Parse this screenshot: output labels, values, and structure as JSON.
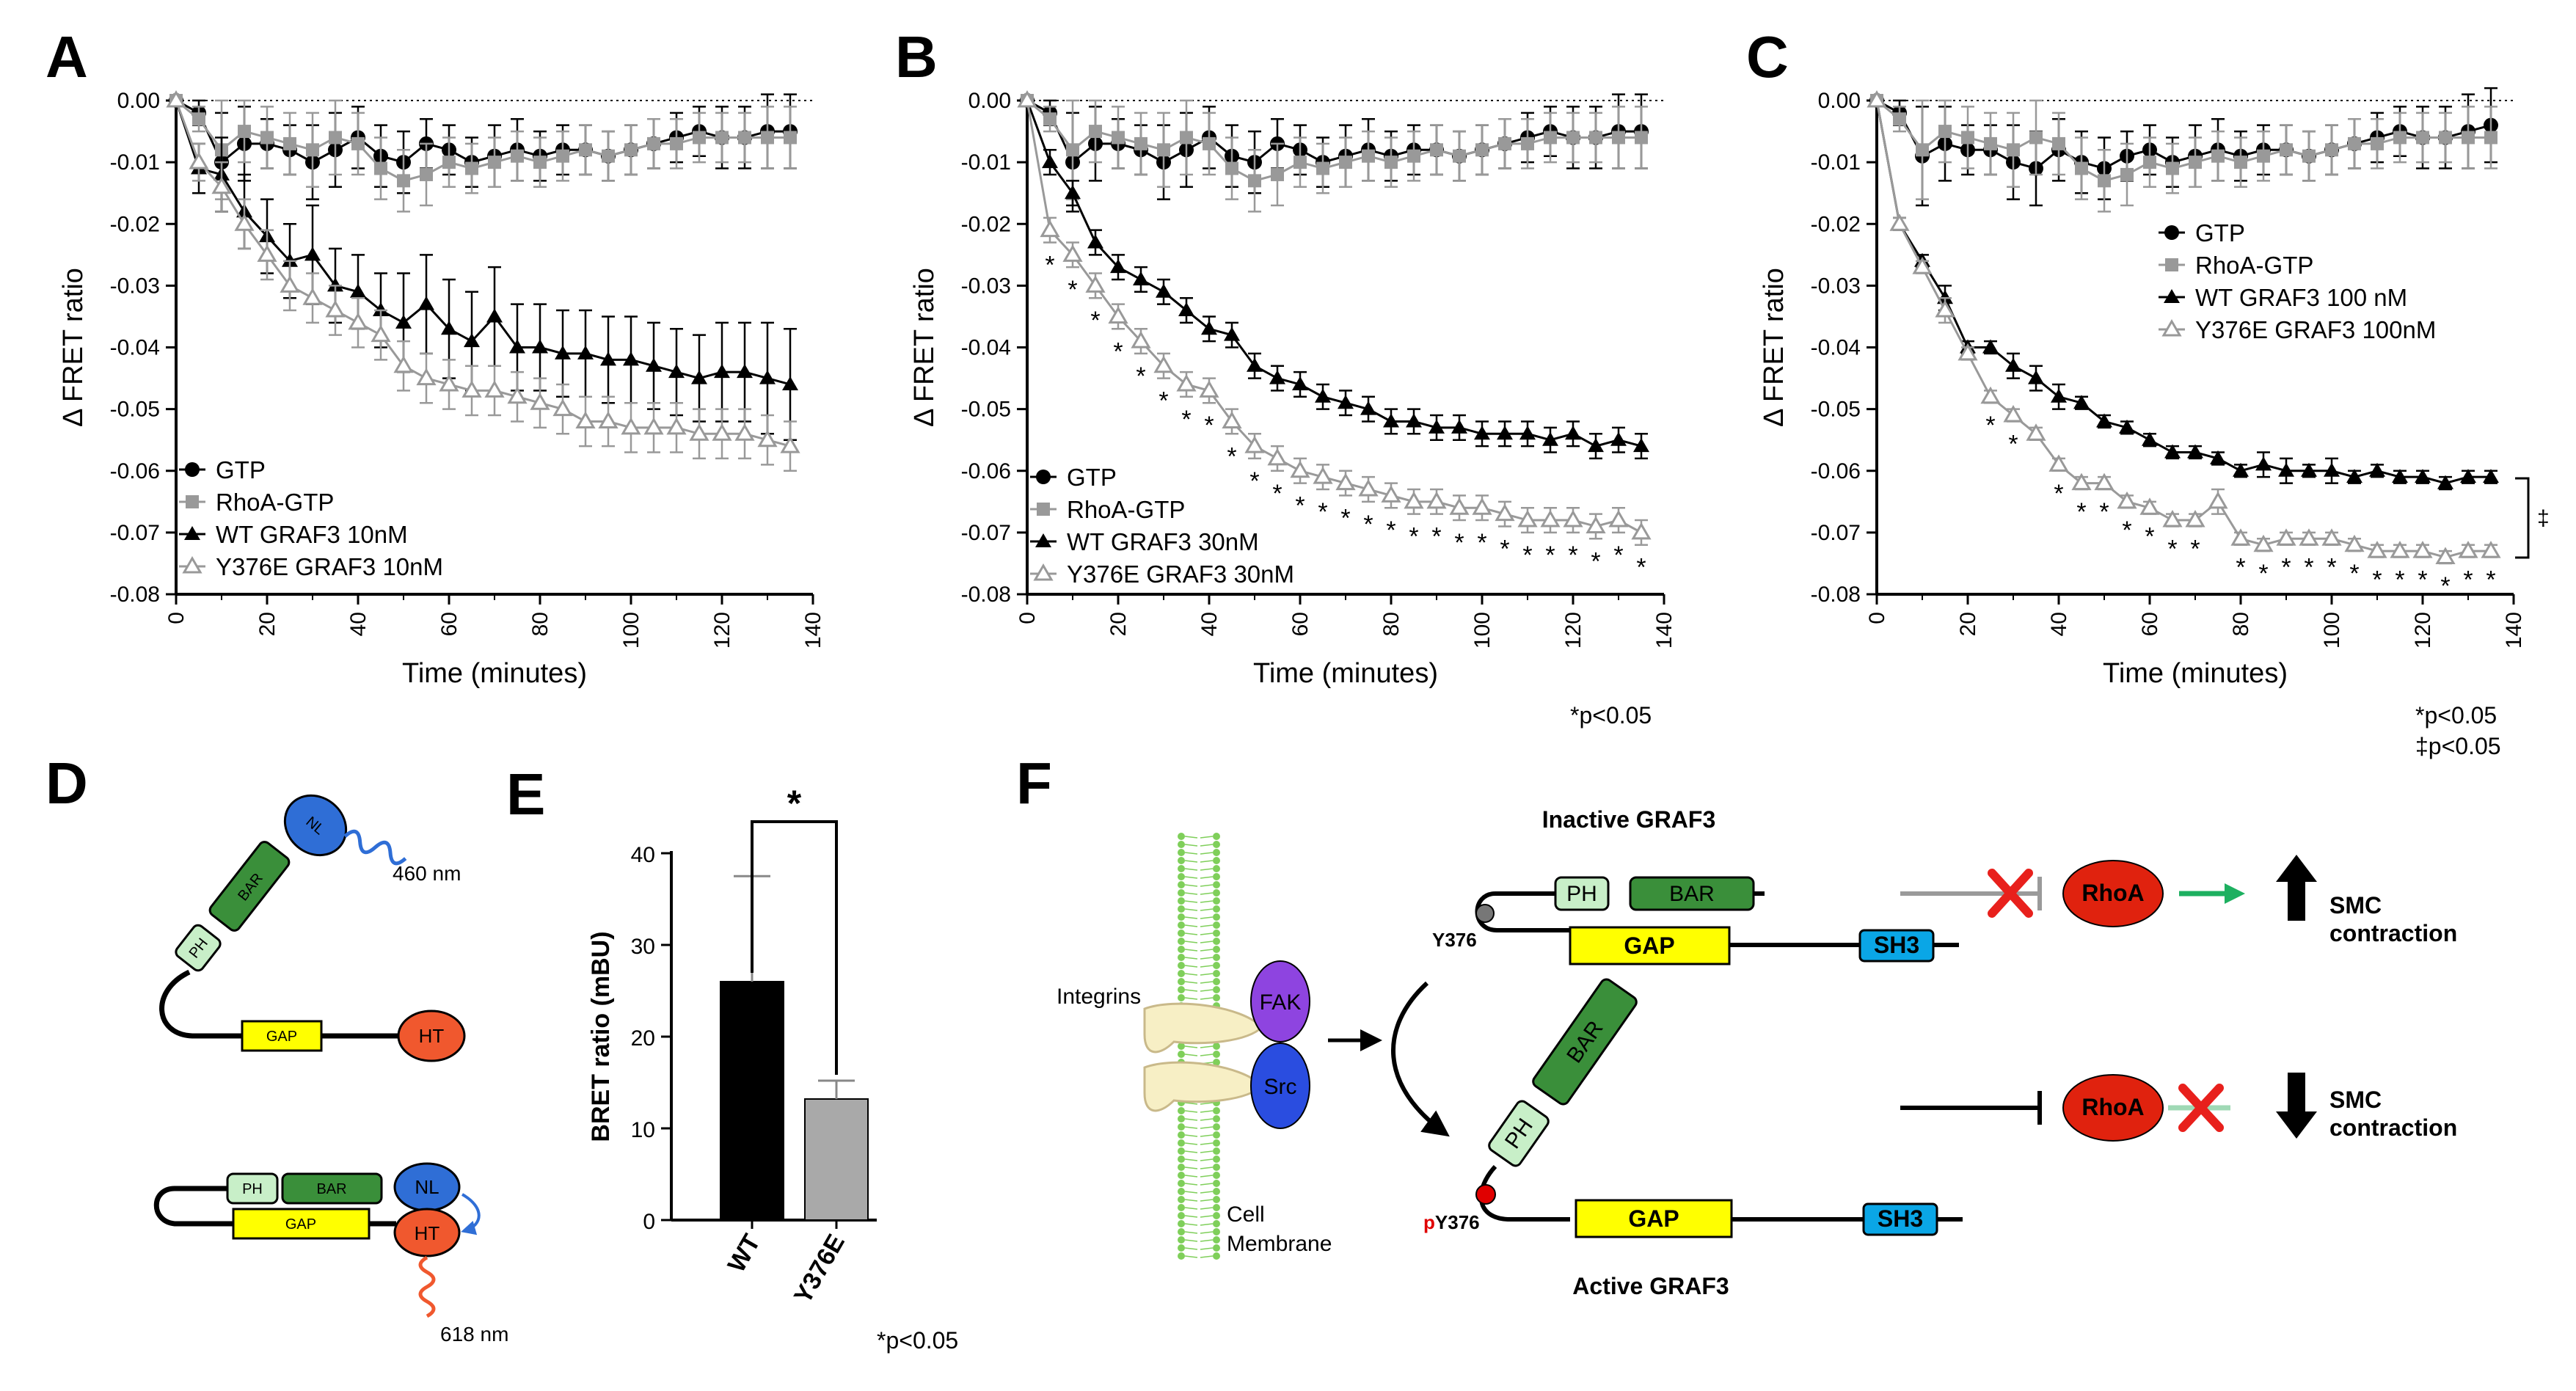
{
  "panels": {
    "A": "A",
    "B": "B",
    "C": "C",
    "D": "D",
    "E": "E",
    "F": "F"
  },
  "chart_data": [
    {
      "panel": "A",
      "type": "line",
      "xlabel": "Time (minutes)",
      "ylabel": "Δ FRET ratio",
      "xlim": [
        0,
        140
      ],
      "ylim": [
        -0.08,
        0.0
      ],
      "xticks": [
        "0",
        "20",
        "40",
        "60",
        "80",
        "100",
        "120",
        "140"
      ],
      "yticks": [
        "0.00",
        "-0.01",
        "-0.02",
        "-0.03",
        "-0.04",
        "-0.05",
        "-0.06",
        "-0.07",
        "-0.08"
      ],
      "x": [
        0,
        5,
        10,
        15,
        20,
        25,
        30,
        35,
        40,
        45,
        50,
        55,
        60,
        65,
        70,
        75,
        80,
        85,
        90,
        95,
        100,
        105,
        110,
        115,
        120,
        125,
        130,
        135
      ],
      "series": [
        {
          "name": "GTP",
          "marker": "circle",
          "color": "#000000",
          "values": [
            0,
            -0.002,
            -0.01,
            -0.007,
            -0.007,
            -0.008,
            -0.01,
            -0.008,
            -0.006,
            -0.009,
            -0.01,
            -0.007,
            -0.008,
            -0.01,
            -0.009,
            -0.008,
            -0.009,
            -0.008,
            -0.008,
            -0.009,
            -0.008,
            -0.007,
            -0.006,
            -0.005,
            -0.006,
            -0.006,
            -0.005,
            -0.005
          ],
          "err": [
            0,
            0.002,
            0.008,
            0.006,
            0.004,
            0.004,
            0.006,
            0.006,
            0.005,
            0.005,
            0.005,
            0.004,
            0.004,
            0.004,
            0.005,
            0.005,
            0.004,
            0.004,
            0.004,
            0.004,
            0.004,
            0.004,
            0.004,
            0.004,
            0.005,
            0.005,
            0.006,
            0.006
          ]
        },
        {
          "name": "RhoA-GTP",
          "marker": "square",
          "color": "#999999",
          "values": [
            0,
            -0.003,
            -0.008,
            -0.005,
            -0.006,
            -0.007,
            -0.008,
            -0.006,
            -0.007,
            -0.011,
            -0.013,
            -0.012,
            -0.01,
            -0.011,
            -0.01,
            -0.009,
            -0.01,
            -0.009,
            -0.008,
            -0.009,
            -0.008,
            -0.007,
            -0.007,
            -0.006,
            -0.006,
            -0.006,
            -0.006,
            -0.006
          ],
          "err": [
            0,
            0.002,
            0.008,
            0.005,
            0.005,
            0.005,
            0.006,
            0.006,
            0.005,
            0.005,
            0.005,
            0.005,
            0.004,
            0.004,
            0.004,
            0.004,
            0.004,
            0.004,
            0.004,
            0.004,
            0.004,
            0.004,
            0.004,
            0.004,
            0.004,
            0.004,
            0.005,
            0.005
          ]
        },
        {
          "name": "WT GRAF3 10nM",
          "marker": "triangle",
          "color": "#000000",
          "values": [
            0,
            -0.011,
            -0.012,
            -0.018,
            -0.022,
            -0.026,
            -0.025,
            -0.03,
            -0.031,
            -0.034,
            -0.036,
            -0.033,
            -0.037,
            -0.039,
            -0.035,
            -0.04,
            -0.04,
            -0.041,
            -0.041,
            -0.042,
            -0.042,
            -0.043,
            -0.044,
            -0.045,
            -0.044,
            -0.044,
            -0.045,
            -0.046
          ],
          "err": [
            0,
            0.004,
            0.006,
            0.006,
            0.006,
            0.006,
            0.008,
            0.006,
            0.006,
            0.006,
            0.008,
            0.008,
            0.008,
            0.008,
            0.008,
            0.007,
            0.007,
            0.007,
            0.007,
            0.007,
            0.007,
            0.007,
            0.007,
            0.007,
            0.008,
            0.008,
            0.009,
            0.009
          ]
        },
        {
          "name": "Y376E GRAF3 10nM",
          "marker": "triangle-open",
          "color": "#999999",
          "values": [
            0,
            -0.01,
            -0.014,
            -0.02,
            -0.025,
            -0.03,
            -0.032,
            -0.034,
            -0.036,
            -0.038,
            -0.043,
            -0.045,
            -0.046,
            -0.047,
            -0.047,
            -0.048,
            -0.049,
            -0.05,
            -0.052,
            -0.052,
            -0.053,
            -0.053,
            -0.053,
            -0.054,
            -0.054,
            -0.054,
            -0.055,
            -0.056
          ],
          "err": [
            0,
            0.003,
            0.004,
            0.004,
            0.004,
            0.004,
            0.004,
            0.004,
            0.004,
            0.004,
            0.004,
            0.004,
            0.004,
            0.004,
            0.004,
            0.004,
            0.004,
            0.004,
            0.004,
            0.004,
            0.004,
            0.004,
            0.004,
            0.004,
            0.004,
            0.004,
            0.004,
            0.004
          ]
        }
      ],
      "stars": [],
      "note": ""
    },
    {
      "panel": "B",
      "type": "line",
      "xlabel": "Time (minutes)",
      "ylabel": "Δ FRET ratio",
      "xlim": [
        0,
        140
      ],
      "ylim": [
        -0.08,
        0.0
      ],
      "xticks": [
        "0",
        "20",
        "40",
        "60",
        "80",
        "100",
        "120",
        "140"
      ],
      "yticks": [
        "0.00",
        "-0.01",
        "-0.02",
        "-0.03",
        "-0.04",
        "-0.05",
        "-0.06",
        "-0.07",
        "-0.08"
      ],
      "x": [
        0,
        5,
        10,
        15,
        20,
        25,
        30,
        35,
        40,
        45,
        50,
        55,
        60,
        65,
        70,
        75,
        80,
        85,
        90,
        95,
        100,
        105,
        110,
        115,
        120,
        125,
        130,
        135
      ],
      "series": [
        {
          "name": "GTP",
          "marker": "circle",
          "color": "#000000",
          "values": [
            0,
            -0.002,
            -0.01,
            -0.007,
            -0.007,
            -0.008,
            -0.01,
            -0.008,
            -0.006,
            -0.009,
            -0.01,
            -0.007,
            -0.008,
            -0.01,
            -0.009,
            -0.008,
            -0.009,
            -0.008,
            -0.008,
            -0.009,
            -0.008,
            -0.007,
            -0.006,
            -0.005,
            -0.006,
            -0.006,
            -0.005,
            -0.005
          ],
          "err": [
            0,
            0.002,
            0.008,
            0.006,
            0.004,
            0.004,
            0.006,
            0.006,
            0.005,
            0.005,
            0.005,
            0.004,
            0.004,
            0.004,
            0.005,
            0.005,
            0.004,
            0.004,
            0.004,
            0.004,
            0.004,
            0.004,
            0.004,
            0.004,
            0.005,
            0.005,
            0.006,
            0.006
          ]
        },
        {
          "name": "RhoA-GTP",
          "marker": "square",
          "color": "#999999",
          "values": [
            0,
            -0.003,
            -0.008,
            -0.005,
            -0.006,
            -0.007,
            -0.008,
            -0.006,
            -0.007,
            -0.011,
            -0.013,
            -0.012,
            -0.01,
            -0.011,
            -0.01,
            -0.009,
            -0.01,
            -0.009,
            -0.008,
            -0.009,
            -0.008,
            -0.007,
            -0.007,
            -0.006,
            -0.006,
            -0.006,
            -0.006,
            -0.006
          ],
          "err": [
            0,
            0.002,
            0.008,
            0.005,
            0.005,
            0.005,
            0.006,
            0.006,
            0.005,
            0.005,
            0.005,
            0.005,
            0.004,
            0.004,
            0.004,
            0.004,
            0.004,
            0.004,
            0.004,
            0.004,
            0.004,
            0.004,
            0.004,
            0.004,
            0.004,
            0.004,
            0.005,
            0.005
          ]
        },
        {
          "name": "WT GRAF3 30nM",
          "marker": "triangle",
          "color": "#000000",
          "values": [
            0,
            -0.01,
            -0.015,
            -0.023,
            -0.027,
            -0.029,
            -0.031,
            -0.034,
            -0.037,
            -0.038,
            -0.043,
            -0.045,
            -0.046,
            -0.048,
            -0.049,
            -0.05,
            -0.052,
            -0.052,
            -0.053,
            -0.053,
            -0.054,
            -0.054,
            -0.054,
            -0.055,
            -0.054,
            -0.056,
            -0.055,
            -0.056
          ],
          "err": [
            0,
            0.002,
            0.002,
            0.002,
            0.002,
            0.002,
            0.002,
            0.002,
            0.002,
            0.002,
            0.002,
            0.002,
            0.002,
            0.002,
            0.002,
            0.002,
            0.002,
            0.002,
            0.002,
            0.002,
            0.002,
            0.002,
            0.002,
            0.002,
            0.002,
            0.002,
            0.002,
            0.002
          ]
        },
        {
          "name": "Y376E GRAF3 30nM",
          "marker": "triangle-open",
          "color": "#999999",
          "values": [
            0,
            -0.021,
            -0.025,
            -0.03,
            -0.035,
            -0.039,
            -0.043,
            -0.046,
            -0.047,
            -0.052,
            -0.056,
            -0.058,
            -0.06,
            -0.061,
            -0.062,
            -0.063,
            -0.064,
            -0.065,
            -0.065,
            -0.066,
            -0.066,
            -0.067,
            -0.068,
            -0.068,
            -0.068,
            -0.069,
            -0.068,
            -0.07
          ],
          "err": [
            0,
            0.002,
            0.002,
            0.002,
            0.002,
            0.002,
            0.002,
            0.002,
            0.002,
            0.002,
            0.002,
            0.002,
            0.002,
            0.002,
            0.002,
            0.002,
            0.002,
            0.002,
            0.002,
            0.002,
            0.002,
            0.002,
            0.002,
            0.002,
            0.002,
            0.002,
            0.002,
            0.002
          ]
        }
      ],
      "stars": [
        5,
        10,
        15,
        20,
        25,
        30,
        35,
        40,
        45,
        50,
        55,
        60,
        65,
        70,
        75,
        80,
        85,
        90,
        95,
        100,
        105,
        110,
        115,
        120,
        125,
        130,
        135
      ],
      "note": "*p<0.05"
    },
    {
      "panel": "C",
      "type": "line",
      "xlabel": "Time (minutes)",
      "ylabel": "Δ FRET ratio",
      "xlim": [
        0,
        140
      ],
      "ylim": [
        -0.08,
        0.0
      ],
      "xticks": [
        "0",
        "20",
        "40",
        "60",
        "80",
        "100",
        "120",
        "140"
      ],
      "yticks": [
        "0.00",
        "-0.01",
        "-0.02",
        "-0.03",
        "-0.04",
        "-0.05",
        "-0.06",
        "-0.07",
        "-0.08"
      ],
      "x": [
        0,
        5,
        10,
        15,
        20,
        25,
        30,
        35,
        40,
        45,
        50,
        55,
        60,
        65,
        70,
        75,
        80,
        85,
        90,
        95,
        100,
        105,
        110,
        115,
        120,
        125,
        130,
        135
      ],
      "series": [
        {
          "name": "GTP",
          "marker": "circle",
          "color": "#000000",
          "values": [
            0,
            -0.002,
            -0.009,
            -0.007,
            -0.008,
            -0.008,
            -0.01,
            -0.011,
            -0.008,
            -0.01,
            -0.011,
            -0.009,
            -0.008,
            -0.01,
            -0.009,
            -0.008,
            -0.009,
            -0.008,
            -0.008,
            -0.009,
            -0.008,
            -0.007,
            -0.006,
            -0.005,
            -0.006,
            -0.006,
            -0.005,
            -0.004
          ],
          "err": [
            0,
            0.002,
            0.008,
            0.006,
            0.004,
            0.004,
            0.006,
            0.006,
            0.005,
            0.005,
            0.005,
            0.004,
            0.004,
            0.004,
            0.005,
            0.005,
            0.004,
            0.004,
            0.004,
            0.004,
            0.004,
            0.004,
            0.004,
            0.004,
            0.005,
            0.005,
            0.006,
            0.006
          ]
        },
        {
          "name": "RhoA-GTP",
          "marker": "square",
          "color": "#999999",
          "values": [
            0,
            -0.003,
            -0.008,
            -0.005,
            -0.006,
            -0.007,
            -0.008,
            -0.006,
            -0.007,
            -0.011,
            -0.013,
            -0.012,
            -0.01,
            -0.011,
            -0.01,
            -0.009,
            -0.01,
            -0.009,
            -0.008,
            -0.009,
            -0.008,
            -0.007,
            -0.007,
            -0.006,
            -0.006,
            -0.006,
            -0.006,
            -0.006
          ],
          "err": [
            0,
            0.002,
            0.008,
            0.005,
            0.005,
            0.005,
            0.006,
            0.006,
            0.005,
            0.005,
            0.005,
            0.005,
            0.004,
            0.004,
            0.004,
            0.004,
            0.004,
            0.004,
            0.004,
            0.004,
            0.004,
            0.004,
            0.004,
            0.004,
            0.004,
            0.004,
            0.005,
            0.005
          ]
        },
        {
          "name": "WT GRAF3 100 nM",
          "marker": "triangle",
          "color": "#000000",
          "values": [
            0,
            -0.02,
            -0.026,
            -0.032,
            -0.04,
            -0.04,
            -0.043,
            -0.045,
            -0.048,
            -0.049,
            -0.052,
            -0.053,
            -0.055,
            -0.057,
            -0.057,
            -0.058,
            -0.06,
            -0.059,
            -0.06,
            -0.06,
            -0.06,
            -0.061,
            -0.06,
            -0.061,
            -0.061,
            -0.062,
            -0.061,
            -0.061
          ],
          "err": [
            0,
            0.001,
            0.001,
            0.002,
            0.001,
            0.001,
            0.002,
            0.002,
            0.002,
            0.001,
            0.001,
            0.001,
            0.001,
            0.001,
            0.001,
            0.001,
            0.001,
            0.002,
            0.002,
            0.001,
            0.002,
            0.001,
            0.001,
            0.001,
            0.001,
            0.001,
            0.001,
            0.001
          ]
        },
        {
          "name": "Y376E GRAF3 100nM",
          "marker": "triangle-open",
          "color": "#999999",
          "values": [
            0,
            -0.02,
            -0.027,
            -0.034,
            -0.041,
            -0.048,
            -0.051,
            -0.054,
            -0.059,
            -0.062,
            -0.062,
            -0.065,
            -0.066,
            -0.068,
            -0.068,
            -0.065,
            -0.071,
            -0.072,
            -0.071,
            -0.071,
            -0.071,
            -0.072,
            -0.073,
            -0.073,
            -0.073,
            -0.074,
            -0.073,
            -0.073
          ],
          "err": [
            0,
            0.001,
            0.001,
            0.002,
            0.001,
            0.001,
            0.001,
            0.001,
            0.001,
            0.001,
            0.001,
            0.001,
            0.001,
            0.001,
            0.001,
            0.002,
            0.001,
            0.001,
            0.001,
            0.001,
            0.001,
            0.001,
            0.001,
            0.001,
            0.001,
            0.001,
            0.001,
            0.001
          ]
        }
      ],
      "stars": [
        25,
        30,
        40,
        45,
        50,
        55,
        60,
        65,
        70,
        80,
        85,
        90,
        95,
        100,
        105,
        110,
        115,
        120,
        125,
        130,
        135
      ],
      "note": "*p<0.05",
      "note2": "‡p<0.05",
      "dagger": "‡"
    },
    {
      "panel": "E",
      "type": "bar",
      "categories": [
        "WT",
        "Y376E"
      ],
      "values": [
        26,
        13.2
      ],
      "err": [
        11.5,
        2
      ],
      "colors": [
        "#000000",
        "#a9a9a9"
      ],
      "ylabel": "BRET ratio (mBU)",
      "ylim": [
        0,
        40
      ],
      "yticks": [
        "0",
        "10",
        "20",
        "30",
        "40"
      ],
      "sig": "*",
      "note": "*p<0.05"
    }
  ],
  "diagramD": {
    "domains": {
      "nl": "NL",
      "bar": "BAR",
      "ph": "PH",
      "gap": "GAP",
      "ht": "HT"
    },
    "wave1": "460 nm",
    "wave2": "618 nm"
  },
  "diagramF": {
    "inactive_title": "Inactive GRAF3",
    "active_title": "Active GRAF3",
    "integrins": "Integrins",
    "membrane1": "Cell",
    "membrane2": "Membrane",
    "fak": "FAK",
    "src": "Src",
    "ph": "PH",
    "bar": "BAR",
    "gap": "GAP",
    "sh3": "SH3",
    "y376": "Y376",
    "py376_p": "p",
    "py376_rest": "Y376",
    "rhoa": "RhoA",
    "smc1": "SMC",
    "contraction": "contraction"
  }
}
